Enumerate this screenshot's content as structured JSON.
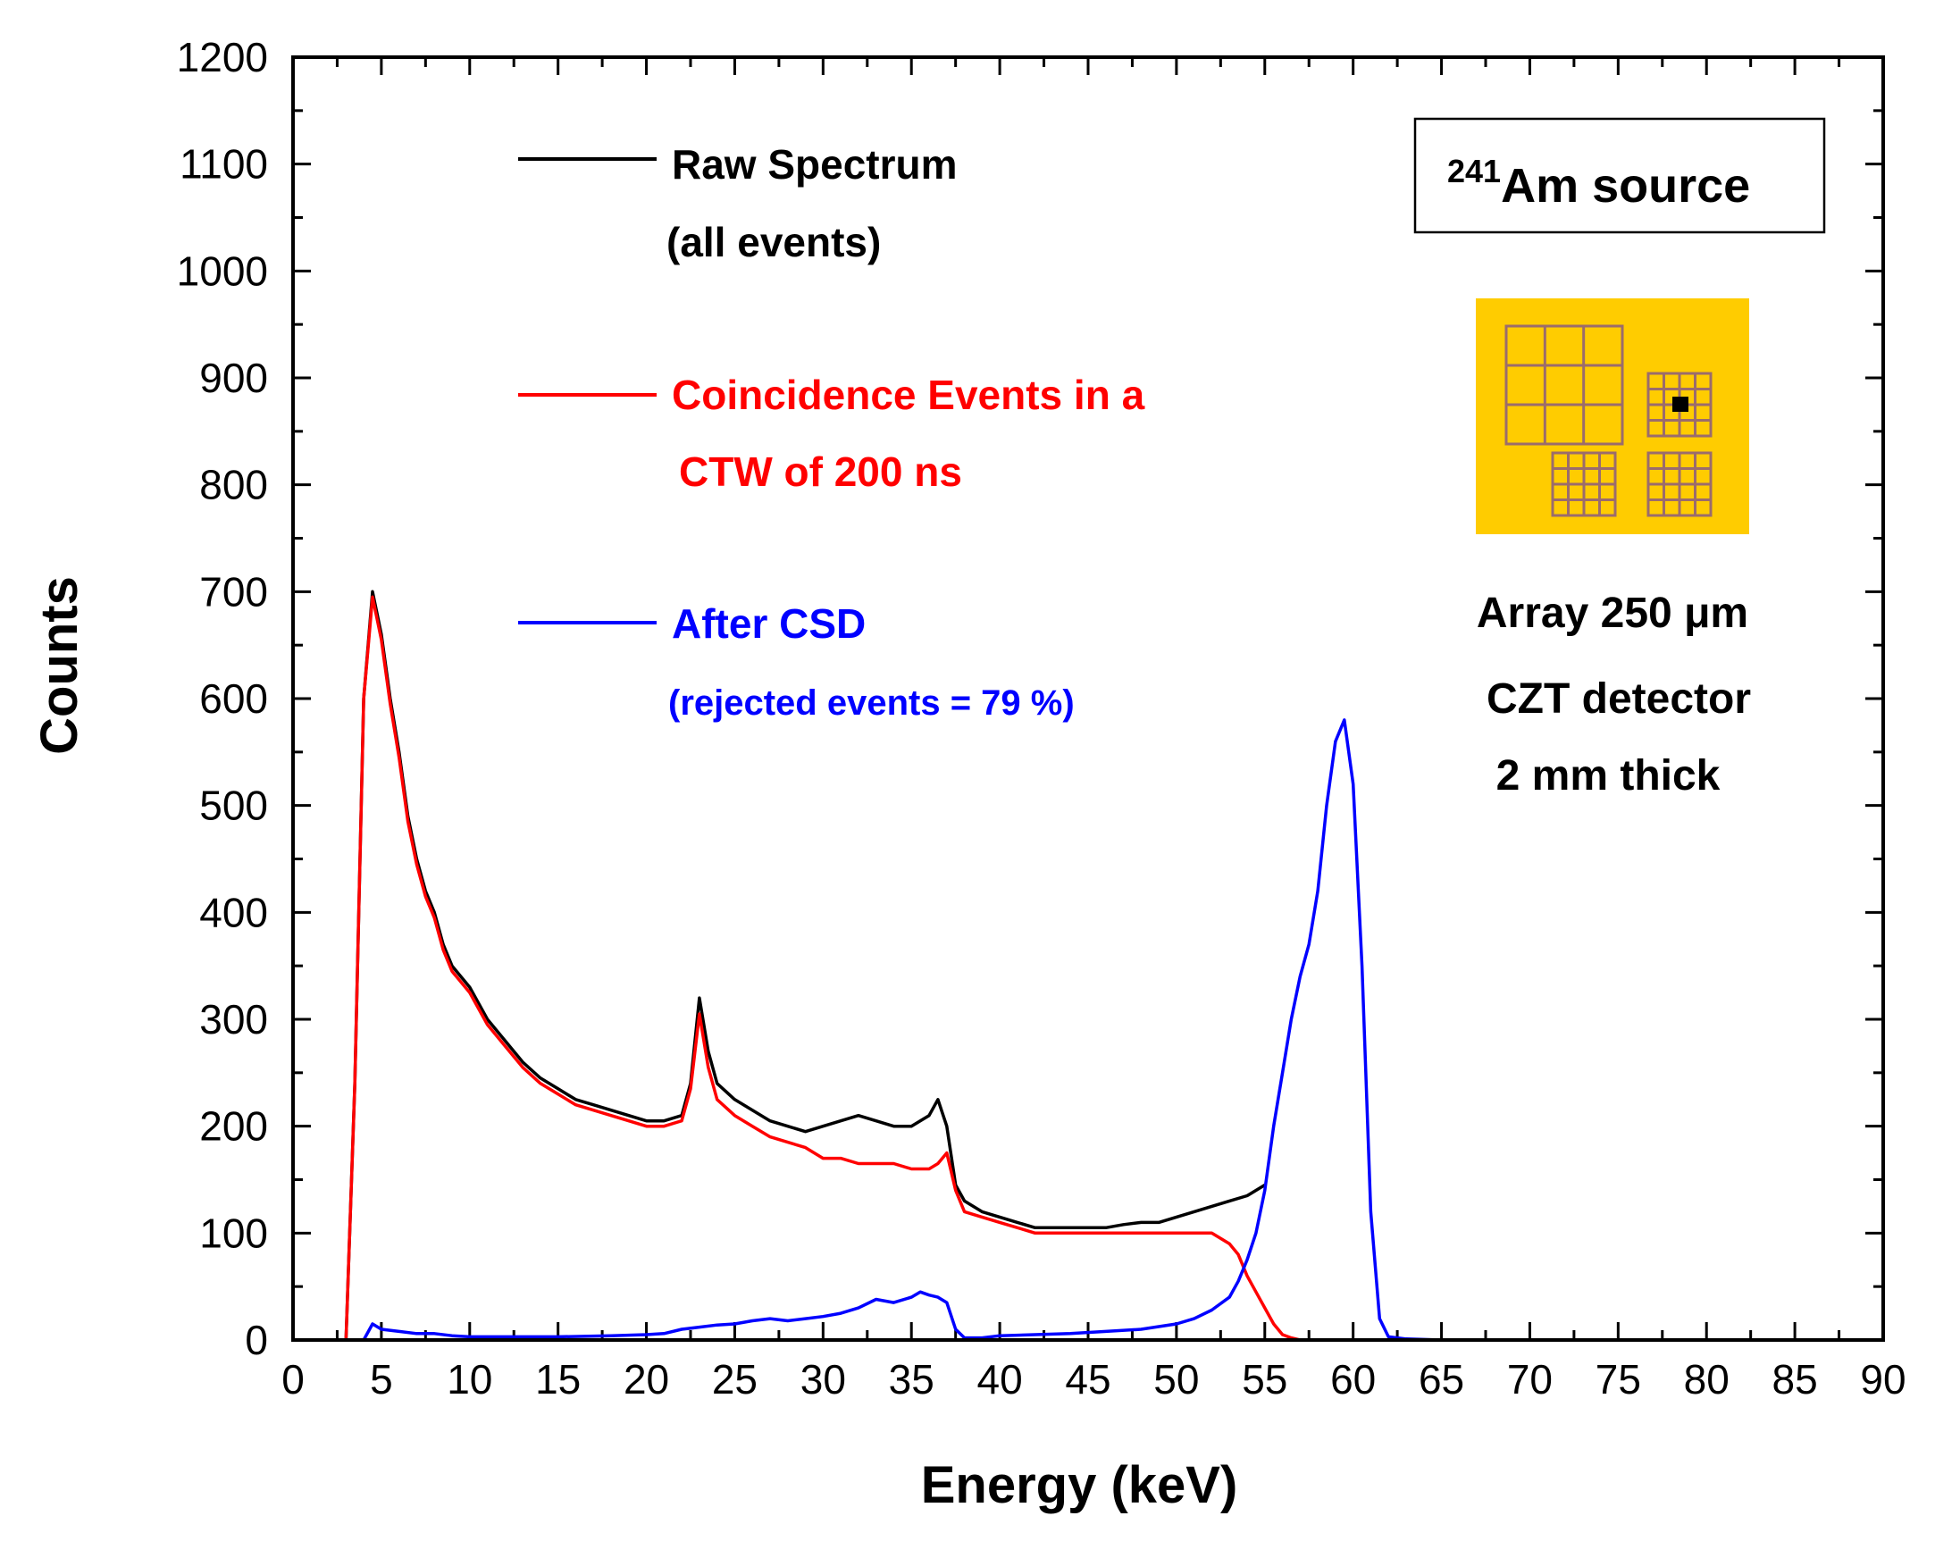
{
  "chart_data": {
    "type": "line",
    "title": "",
    "xlabel": "Energy (keV)",
    "ylabel": "Counts",
    "xlim": [
      0,
      90
    ],
    "ylim": [
      0,
      1200
    ],
    "xticks": [
      0,
      5,
      10,
      15,
      20,
      25,
      30,
      35,
      40,
      45,
      50,
      55,
      60,
      65,
      70,
      75,
      80,
      85,
      90
    ],
    "yticks": [
      0,
      100,
      200,
      300,
      400,
      500,
      600,
      700,
      800,
      900,
      1000,
      1100,
      1200
    ],
    "grid": false,
    "legend_position": "top-left",
    "series": [
      {
        "name": "Raw Spectrum",
        "name_line2": "(all events)",
        "color": "#000000",
        "x": [
          0,
          3,
          3.5,
          4,
          4.5,
          5,
          5.5,
          6,
          6.5,
          7,
          7.5,
          8,
          8.5,
          9,
          10,
          11,
          12,
          13,
          14,
          15,
          16,
          17,
          18,
          19,
          20,
          21,
          22,
          22.5,
          23,
          23.5,
          24,
          25,
          26,
          27,
          28,
          29,
          30,
          31,
          32,
          33,
          34,
          35,
          36,
          36.5,
          37,
          37.5,
          38,
          39,
          40,
          41,
          42,
          43,
          44,
          45,
          46,
          47,
          48,
          49,
          50,
          51,
          52,
          53,
          54,
          55
        ],
        "y": [
          0,
          0,
          240,
          600,
          700,
          660,
          600,
          550,
          490,
          450,
          420,
          400,
          370,
          350,
          330,
          300,
          280,
          260,
          245,
          235,
          225,
          220,
          215,
          210,
          205,
          205,
          210,
          240,
          320,
          270,
          240,
          225,
          215,
          205,
          200,
          195,
          200,
          205,
          210,
          205,
          200,
          200,
          210,
          225,
          200,
          145,
          130,
          120,
          115,
          110,
          105,
          105,
          105,
          105,
          105,
          108,
          110,
          110,
          115,
          120,
          125,
          130,
          135,
          145
        ]
      },
      {
        "name": "Coincidence Events in a",
        "name_line2": "CTW of 200 ns",
        "color": "#ff0000",
        "x": [
          0,
          3,
          3.5,
          4,
          4.5,
          5,
          5.5,
          6,
          6.5,
          7,
          7.5,
          8,
          8.5,
          9,
          10,
          11,
          12,
          13,
          14,
          15,
          16,
          17,
          18,
          19,
          20,
          21,
          22,
          22.5,
          23,
          23.5,
          24,
          25,
          26,
          27,
          28,
          29,
          30,
          31,
          32,
          33,
          34,
          35,
          36,
          36.5,
          37,
          37.5,
          38,
          39,
          40,
          41,
          42,
          43,
          44,
          45,
          46,
          47,
          48,
          49,
          50,
          51,
          52,
          53,
          53.5,
          54,
          54.5,
          55,
          55.5,
          56,
          56.5,
          57,
          58,
          59,
          60,
          61,
          62
        ],
        "y": [
          0,
          0,
          240,
          600,
          695,
          655,
          595,
          545,
          485,
          445,
          415,
          395,
          365,
          345,
          325,
          295,
          275,
          255,
          240,
          230,
          220,
          215,
          210,
          205,
          200,
          200,
          205,
          235,
          305,
          255,
          225,
          210,
          200,
          190,
          185,
          180,
          170,
          170,
          165,
          165,
          165,
          160,
          160,
          165,
          175,
          140,
          120,
          115,
          110,
          105,
          100,
          100,
          100,
          100,
          100,
          100,
          100,
          100,
          100,
          100,
          100,
          90,
          80,
          60,
          45,
          30,
          15,
          5,
          2,
          0,
          0,
          0,
          0,
          0,
          0
        ]
      },
      {
        "name": "After CSD",
        "name_line2": "(rejected events = 79 %)",
        "color": "#0000ff",
        "x": [
          0,
          3,
          4,
          4.5,
          5,
          6,
          7,
          8,
          9,
          10,
          15,
          18,
          20,
          21,
          22,
          23,
          24,
          25,
          26,
          27,
          28,
          29,
          30,
          31,
          32,
          33,
          34,
          35,
          35.5,
          36,
          36.5,
          37,
          37.5,
          38,
          39,
          40,
          42,
          44,
          46,
          48,
          50,
          51,
          52,
          53,
          53.5,
          54,
          54.5,
          55,
          55.5,
          56,
          56.5,
          57,
          57.5,
          58,
          58.5,
          59,
          59.5,
          60,
          60.5,
          61,
          61.5,
          62,
          63,
          65,
          70,
          80,
          90
        ],
        "y": [
          0,
          0,
          0,
          15,
          10,
          8,
          6,
          6,
          4,
          3,
          3,
          4,
          5,
          6,
          10,
          12,
          14,
          15,
          18,
          20,
          18,
          20,
          22,
          25,
          30,
          38,
          35,
          40,
          45,
          42,
          40,
          35,
          10,
          2,
          2,
          4,
          5,
          6,
          8,
          10,
          15,
          20,
          28,
          40,
          55,
          75,
          100,
          140,
          200,
          250,
          300,
          340,
          370,
          420,
          500,
          560,
          580,
          520,
          350,
          120,
          20,
          3,
          1,
          0,
          0,
          0,
          0
        ]
      }
    ],
    "annotations": {
      "source_prefix": "241",
      "source_label": "Am source",
      "detector_line1": "Array  250 μm",
      "detector_line2": "CZT detector",
      "detector_line3": "2 mm thick"
    },
    "inset_colors": {
      "background": "#ffcc00",
      "grid_lines": "#9b6c6c",
      "marker": "#000000"
    }
  }
}
